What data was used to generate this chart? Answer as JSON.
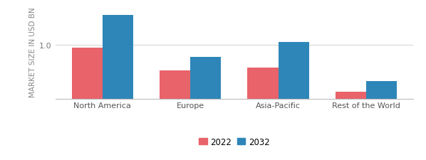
{
  "categories": [
    "North America",
    "Europe",
    "Asia-Pacific",
    "Rest of the World"
  ],
  "values_2022": [
    0.95,
    0.52,
    0.58,
    0.13
  ],
  "values_2032": [
    1.55,
    0.78,
    1.05,
    0.33
  ],
  "color_2022": "#e8636a",
  "color_2032": "#2e86b8",
  "ylabel": "MARKET SIZE IN USD BN",
  "legend_labels": [
    "2022",
    "2032"
  ],
  "ylim": [
    0,
    1.75
  ],
  "ytick_val": 1.0,
  "ytick_label": "1.0",
  "bar_width": 0.35,
  "background_color": "#ffffff",
  "grid_color": "#d8d8d8",
  "tick_fontsize": 8.0,
  "ylabel_fontsize": 7.5,
  "legend_fontsize": 8.5
}
